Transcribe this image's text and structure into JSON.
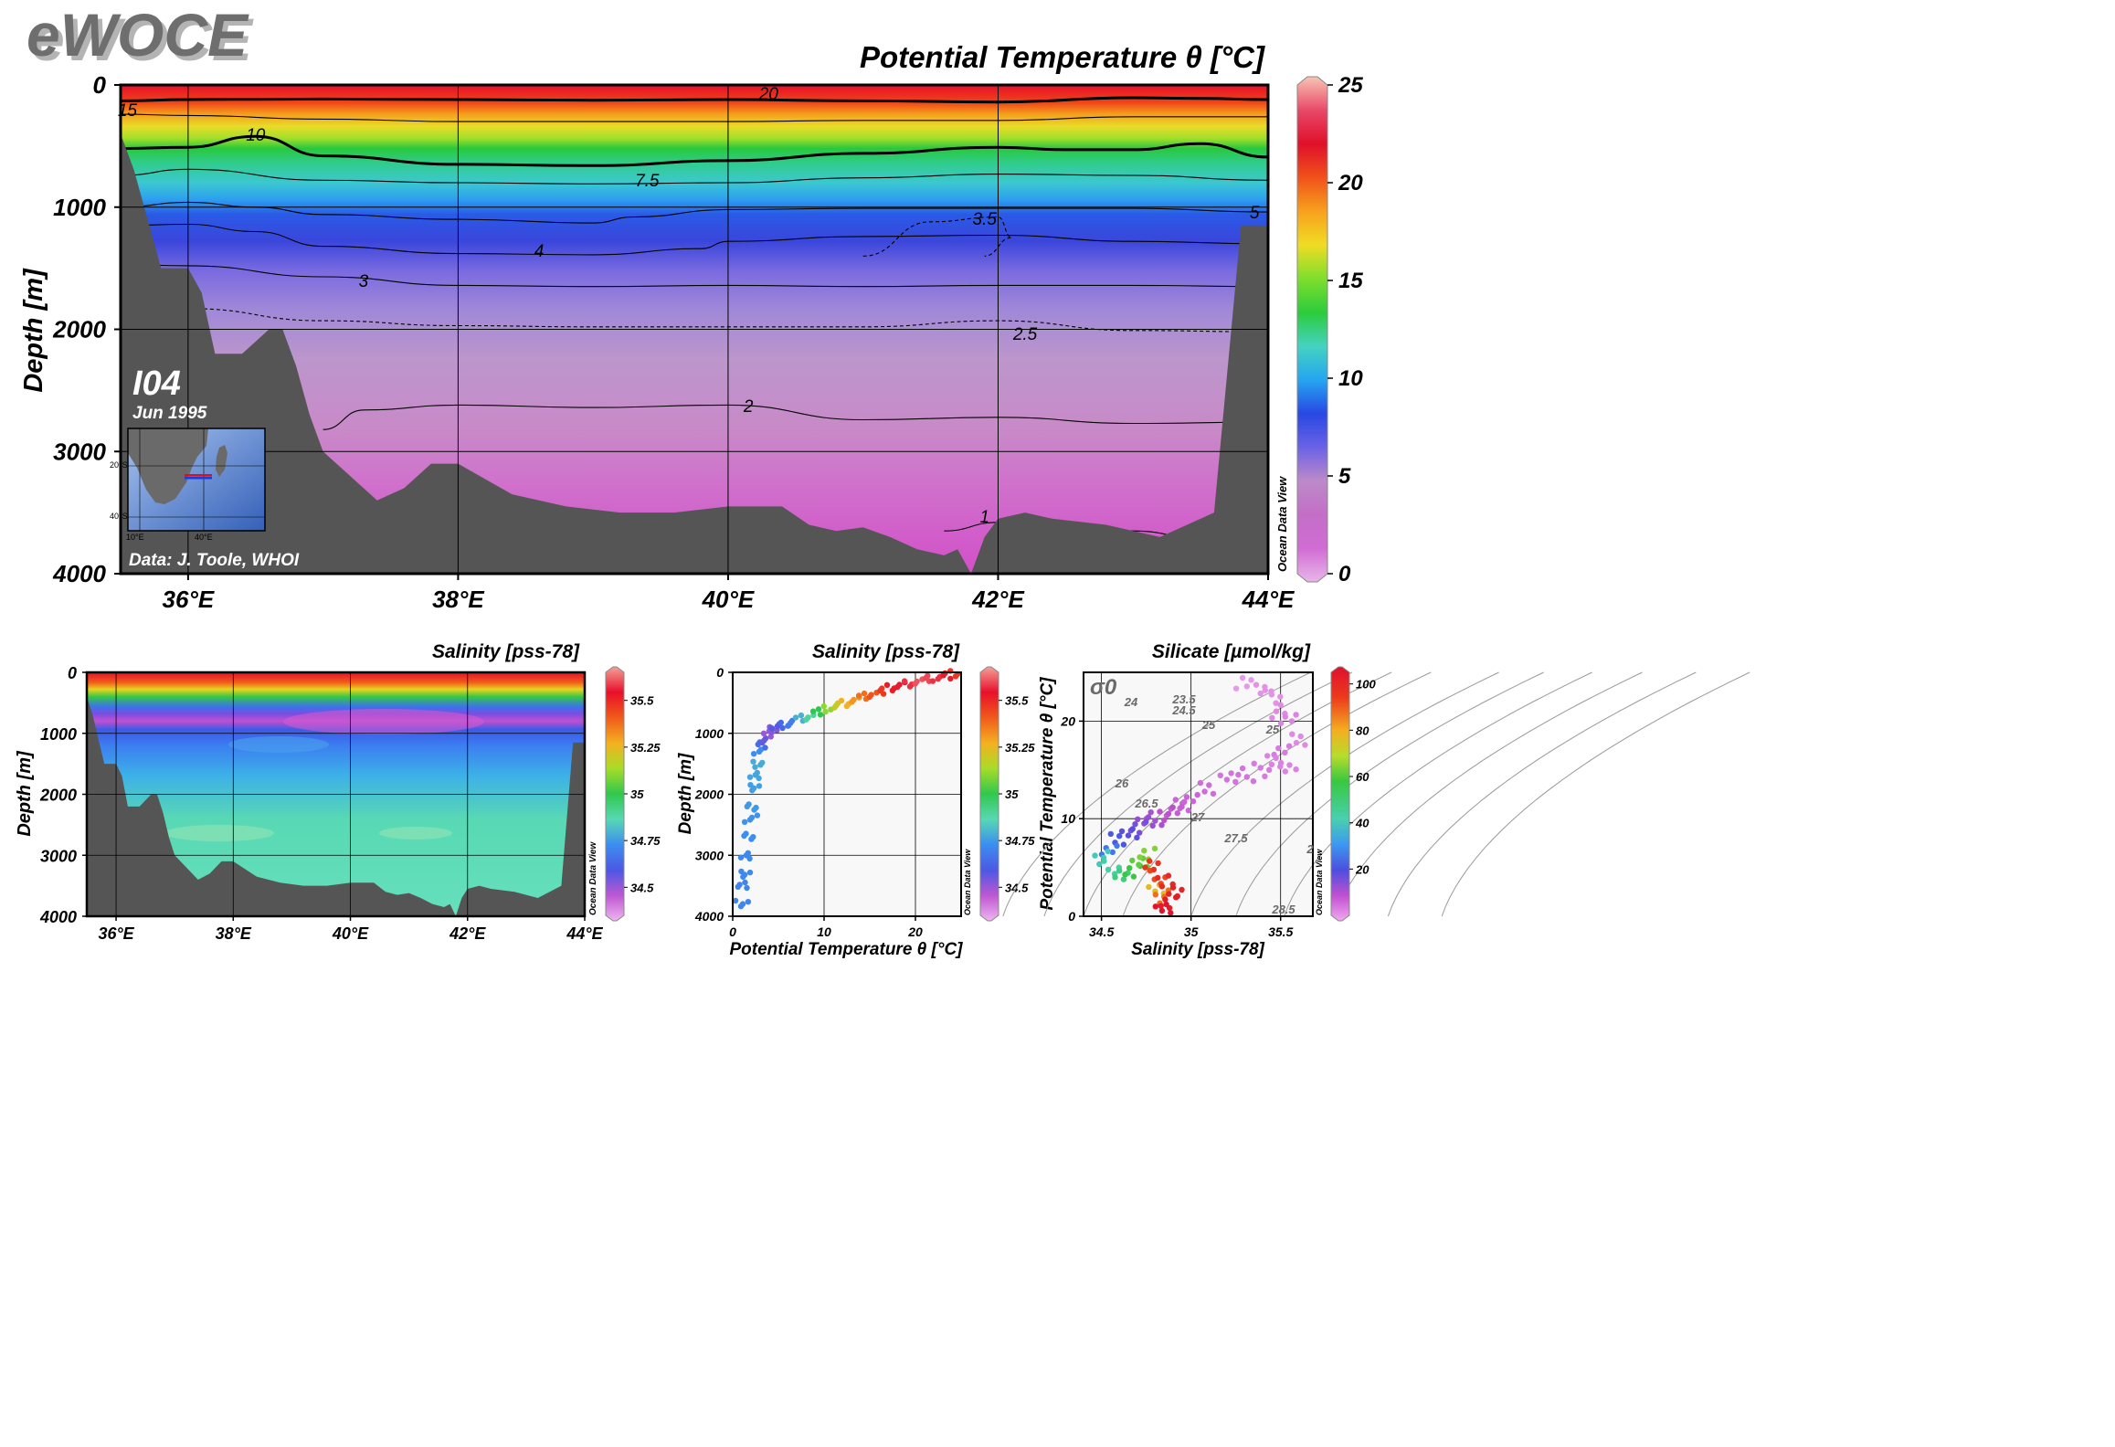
{
  "logo": "eWOCE",
  "colors": {
    "topography": "#555555",
    "temperature_scale": [
      "#e8b6e8",
      "#d06cd4",
      "#c46ec8",
      "#bc8ac8",
      "#6a62e6",
      "#2848e4",
      "#25a6f0",
      "#45d2c0",
      "#2ccc3c",
      "#7ede2c",
      "#f0dc24",
      "#f7a21d",
      "#f0521a",
      "#e0102a",
      "#e84868",
      "#f8c4b4"
    ],
    "salinity_scale": [
      "#f0b4f0",
      "#bc58d0",
      "#4c58e4",
      "#3c8ef0",
      "#58d8b4",
      "#30c84c",
      "#a8dc28",
      "#f4b020",
      "#f05a1a",
      "#e8102a",
      "#f4a098"
    ]
  },
  "map_inset": {
    "lat_labels": [
      "20°S",
      "40°S"
    ],
    "lon_labels": [
      "10°E",
      "40°E"
    ]
  },
  "chart_data": [
    {
      "type": "heatmap",
      "title": "Potential Temperature θ [°C]",
      "ylabel": "Depth [m]",
      "section": "I04",
      "date": "Jun 1995",
      "credit": "Data: J. Toole, WHOI",
      "brand": "Ocean Data View",
      "x_ticks": [
        "36°E",
        "38°E",
        "40°E",
        "42°E",
        "44°E"
      ],
      "x_tick_values": [
        36,
        38,
        40,
        42,
        44
      ],
      "xlim": [
        35.5,
        44
      ],
      "y_ticks": [
        "0",
        "1000",
        "2000",
        "3000",
        "4000"
      ],
      "y_tick_values": [
        0,
        1000,
        2000,
        3000,
        4000
      ],
      "ylim": [
        0,
        4000
      ],
      "colorbar_ticks": [
        "0",
        "5",
        "10",
        "15",
        "20",
        "25"
      ],
      "colorbar_values": [
        0,
        5,
        10,
        15,
        20,
        25
      ],
      "contour_labels": [
        "20",
        "15",
        "10",
        "7.5",
        "5",
        "4",
        "3.5",
        "3",
        "2.5",
        "2",
        "1"
      ],
      "contours": [
        {
          "level": 20,
          "x": [
            35.5,
            36,
            37,
            38,
            39,
            40,
            41,
            42,
            43,
            43.5,
            44
          ],
          "depth": [
            130,
            120,
            115,
            120,
            125,
            120,
            130,
            140,
            105,
            110,
            120
          ]
        },
        {
          "level": 15,
          "x": [
            35.5,
            36,
            37,
            38,
            39,
            40,
            41,
            42,
            43,
            44
          ],
          "depth": [
            240,
            250,
            280,
            300,
            300,
            300,
            290,
            290,
            260,
            260
          ]
        },
        {
          "level": 10,
          "x": [
            35.5,
            36,
            36.5,
            37,
            38,
            39,
            40,
            41,
            42,
            42.5,
            43,
            43.5,
            44
          ],
          "depth": [
            520,
            510,
            420,
            580,
            650,
            660,
            620,
            560,
            510,
            530,
            530,
            480,
            590
          ]
        },
        {
          "level": 7.5,
          "x": [
            35.5,
            36,
            37,
            38,
            39,
            40,
            41,
            42,
            43,
            44
          ],
          "depth": [
            740,
            690,
            780,
            800,
            810,
            800,
            760,
            730,
            740,
            780
          ]
        },
        {
          "level": 5,
          "x": [
            35.5,
            36,
            36.5,
            37,
            38,
            39,
            39.3,
            40,
            41,
            42,
            43,
            44
          ],
          "depth": [
            1000,
            960,
            1000,
            1060,
            1100,
            1130,
            1080,
            1020,
            1010,
            1010,
            1010,
            1040
          ]
        },
        {
          "level": 4,
          "x": [
            35.5,
            36,
            36.5,
            37,
            38,
            39,
            39.8,
            40,
            41,
            42,
            43,
            44
          ],
          "depth": [
            1150,
            1140,
            1200,
            1320,
            1380,
            1390,
            1340,
            1280,
            1240,
            1230,
            1280,
            1300
          ]
        },
        {
          "level": 3.5,
          "x": [
            41,
            41.5,
            42,
            42.1,
            41.9
          ],
          "depth": [
            1400,
            1120,
            1080,
            1250,
            1400
          ]
        },
        {
          "level": 3,
          "x": [
            35.5,
            36,
            37,
            38,
            39,
            40,
            41,
            42,
            43,
            44
          ],
          "depth": [
            1470,
            1480,
            1570,
            1640,
            1650,
            1640,
            1650,
            1640,
            1640,
            1650
          ]
        },
        {
          "level": 2.5,
          "x": [
            35.5,
            36,
            37,
            38,
            39,
            40,
            41,
            42,
            43,
            44
          ],
          "depth": [
            1800,
            1830,
            1930,
            1970,
            1980,
            1980,
            1980,
            1930,
            2010,
            2020
          ]
        },
        {
          "level": 2,
          "x": [
            37,
            37.3,
            38,
            39,
            40,
            41,
            42,
            43,
            44
          ],
          "depth": [
            2820,
            2660,
            2620,
            2640,
            2620,
            2740,
            2720,
            2770,
            2760
          ]
        },
        {
          "level": 1,
          "x": [
            41.6,
            42,
            43,
            43.6
          ],
          "depth": [
            3650,
            3580,
            3650,
            3740
          ]
        }
      ],
      "bathymetry": {
        "x": [
          35.5,
          35.6,
          35.8,
          36,
          36.1,
          36.2,
          36.4,
          36.6,
          36.7,
          36.8,
          36.9,
          37,
          37.2,
          37.4,
          37.6,
          37.8,
          38,
          38.4,
          38.8,
          39.2,
          39.6,
          40,
          40.4,
          40.6,
          40.8,
          41,
          41.2,
          41.4,
          41.6,
          41.7,
          41.8,
          41.9,
          42,
          42.2,
          42.4,
          42.8,
          43.2,
          43.6,
          43.8,
          44
        ],
        "depth": [
          400,
          700,
          1500,
          1500,
          1700,
          2200,
          2200,
          2000,
          2000,
          2300,
          2700,
          3000,
          3200,
          3400,
          3300,
          3100,
          3100,
          3350,
          3450,
          3500,
          3500,
          3450,
          3450,
          3600,
          3650,
          3620,
          3700,
          3800,
          3850,
          3800,
          4000,
          3700,
          3550,
          3500,
          3550,
          3600,
          3700,
          3500,
          1150,
          1150
        ]
      }
    },
    {
      "type": "heatmap",
      "title": "Salinity [pss-78]",
      "ylabel": "Depth [m]",
      "brand": "Ocean Data View",
      "x_ticks": [
        "36°E",
        "38°E",
        "40°E",
        "42°E",
        "44°E"
      ],
      "x_tick_values": [
        36,
        38,
        40,
        42,
        44
      ],
      "xlim": [
        35.5,
        44
      ],
      "y_ticks": [
        "0",
        "1000",
        "2000",
        "3000",
        "4000"
      ],
      "y_tick_values": [
        0,
        1000,
        2000,
        3000,
        4000
      ],
      "ylim": [
        0,
        4000
      ],
      "colorbar_ticks": [
        "34.5",
        "34.75",
        "35",
        "35.25",
        "35.5"
      ],
      "colorbar_values": [
        34.5,
        34.75,
        35,
        35.25,
        35.5
      ],
      "clim": [
        34.35,
        35.65
      ]
    },
    {
      "type": "scatter",
      "title": "Salinity [pss-78]",
      "xlabel": "Potential Temperature θ [°C]",
      "ylabel": "Depth [m]",
      "brand": "Ocean Data View",
      "x_ticks": [
        "0",
        "10",
        "20"
      ],
      "x_tick_values": [
        0,
        10,
        20
      ],
      "xlim": [
        0,
        25
      ],
      "y_ticks": [
        "0",
        "1000",
        "2000",
        "3000",
        "4000"
      ],
      "y_tick_values": [
        0,
        1000,
        2000,
        3000,
        4000
      ],
      "ylim": [
        0,
        4000
      ],
      "colorbar_ticks": [
        "34.5",
        "34.75",
        "35",
        "35.25",
        "35.5"
      ],
      "colorbar_values": [
        34.5,
        34.75,
        35,
        35.25,
        35.5
      ],
      "clim": [
        34.35,
        35.65
      ],
      "points": {
        "theta": [
          1.0,
          1.1,
          1.3,
          1.5,
          1.7,
          2.0,
          2.1,
          2.3,
          2.5,
          2.7,
          3.0,
          3.3,
          3.6,
          4.0,
          4.5,
          5.0,
          5.8,
          6.5,
          7.5,
          8.5,
          9.5,
          10.5,
          11.5,
          12.5,
          13.5,
          14.5,
          15.5,
          16.5,
          17.5,
          18.5,
          19.5,
          20.5,
          21.5,
          22.5,
          23.5,
          24.5
        ],
        "depth": [
          3800,
          3500,
          3300,
          3000,
          2700,
          2400,
          2200,
          1900,
          1700,
          1500,
          1300,
          1200,
          1100,
          1000,
          950,
          900,
          860,
          830,
          760,
          720,
          640,
          610,
          560,
          500,
          450,
          400,
          350,
          300,
          260,
          220,
          180,
          150,
          110,
          90,
          50,
          30
        ],
        "salinity": [
          34.72,
          34.72,
          34.73,
          34.73,
          34.74,
          34.75,
          34.76,
          34.77,
          34.78,
          34.79,
          34.74,
          34.66,
          34.58,
          34.52,
          34.55,
          34.6,
          34.65,
          34.7,
          34.8,
          34.9,
          35.0,
          35.1,
          35.18,
          35.26,
          35.3,
          35.36,
          35.4,
          35.45,
          35.5,
          35.53,
          35.55,
          35.58,
          35.57,
          35.55,
          35.5,
          35.45
        ]
      }
    },
    {
      "type": "scatter",
      "title": "Silicate [µmol/kg]",
      "xlabel": "Salinity [pss-78]",
      "ylabel": "Potential Temperature θ [°C]",
      "brand": "Ocean Data View",
      "x_ticks": [
        "34.5",
        "35",
        "35.5"
      ],
      "x_tick_values": [
        34.5,
        35,
        35.5
      ],
      "xlim": [
        34.4,
        35.68
      ],
      "y_ticks": [
        "0",
        "10",
        "20"
      ],
      "y_tick_values": [
        0,
        10,
        20
      ],
      "ylim": [
        0,
        25
      ],
      "colorbar_ticks": [
        "20",
        "40",
        "60",
        "80",
        "100"
      ],
      "colorbar_values": [
        20,
        40,
        60,
        80,
        100
      ],
      "clim": [
        0,
        105
      ],
      "sigma_label": "σ0",
      "isopycnal_labels": [
        "23.5",
        "24",
        "24.5",
        "25",
        "26",
        "26.5",
        "27",
        "27.5",
        "28.5",
        "25",
        "2"
      ],
      "points": {
        "salinity": [
          35.3,
          35.4,
          35.45,
          35.5,
          35.55,
          35.6,
          35.5,
          35.45,
          35.55,
          35.4,
          35.3,
          35.2,
          35.1,
          35.0,
          34.95,
          34.9,
          34.85,
          34.8,
          34.75,
          34.7,
          34.65,
          34.6,
          34.55,
          34.5,
          34.55,
          34.6,
          34.68,
          34.72,
          34.75,
          34.8,
          34.85,
          34.82,
          34.78,
          34.85,
          34.9,
          34.88,
          34.85
        ],
        "theta": [
          24,
          23.5,
          22.5,
          21,
          20,
          18,
          17,
          16,
          15.5,
          15,
          14.5,
          14,
          13,
          12,
          11.5,
          11,
          10.5,
          10,
          9.5,
          9,
          8.5,
          8,
          7,
          6,
          5,
          4,
          4.5,
          5.5,
          6.5,
          3,
          2,
          4,
          5,
          3.5,
          2.5,
          1.5,
          1
        ],
        "silicate": [
          2,
          3,
          3,
          4,
          5,
          4,
          6,
          5,
          5,
          6,
          7,
          7,
          8,
          9,
          9,
          10,
          12,
          14,
          16,
          19,
          22,
          25,
          30,
          45,
          48,
          52,
          58,
          62,
          65,
          78,
          88,
          92,
          95,
          98,
          100,
          102,
          104
        ]
      }
    }
  ]
}
